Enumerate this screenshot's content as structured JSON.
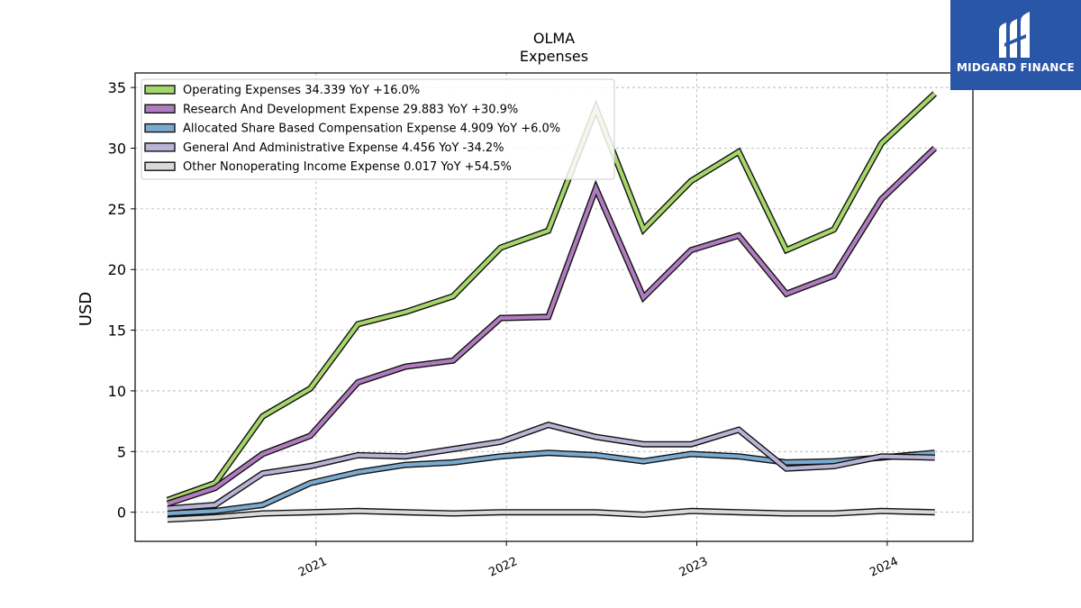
{
  "chart_data": {
    "type": "line",
    "title": "OLMA",
    "subtitle": "Expenses",
    "ylabel": "USD",
    "xlabel": "",
    "ylim": [
      -2.4,
      36.2
    ],
    "xlim": [
      2020.05,
      2024.45
    ],
    "yticks": [
      0,
      5,
      10,
      15,
      20,
      25,
      30,
      35
    ],
    "xticks": [
      {
        "value": 2021.0,
        "label": "2021"
      },
      {
        "value": 2022.0,
        "label": "2022"
      },
      {
        "value": 2023.0,
        "label": "2023"
      },
      {
        "value": 2024.0,
        "label": "2024"
      }
    ],
    "grid": true,
    "legend_position": "top-left",
    "x": [
      2020.22,
      2020.47,
      2020.72,
      2020.97,
      2021.22,
      2021.47,
      2021.72,
      2021.97,
      2022.22,
      2022.47,
      2022.72,
      2022.97,
      2023.22,
      2023.47,
      2023.72,
      2023.97,
      2024.25
    ],
    "series": [
      {
        "name": "Operating Expenses",
        "legend": "Operating Expenses  34.339 YoY +16.0%",
        "color": "#a6d66a",
        "values": [
          1.0,
          2.4,
          7.9,
          10.2,
          15.5,
          16.5,
          17.8,
          21.8,
          23.2,
          33.3,
          23.3,
          27.3,
          29.7,
          21.6,
          23.3,
          30.4,
          34.5
        ]
      },
      {
        "name": "Research And Development Expense",
        "legend": "Research And Development Expense  29.883 YoY +30.9%",
        "color": "#b07cc0",
        "values": [
          0.7,
          2.0,
          4.8,
          6.3,
          10.7,
          12.0,
          12.5,
          16.0,
          16.1,
          26.7,
          17.7,
          21.6,
          22.8,
          18.0,
          19.5,
          25.8,
          30.0
        ]
      },
      {
        "name": "Allocated Share Based Compensation Expense",
        "legend": "Allocated Share Based Compensation Expense  4.909 YoY +6.0%",
        "color": "#7aaad0",
        "values": [
          -0.1,
          0.1,
          0.6,
          2.4,
          3.3,
          3.9,
          4.1,
          4.6,
          4.9,
          4.7,
          4.2,
          4.8,
          4.6,
          4.1,
          4.2,
          4.5,
          4.9
        ]
      },
      {
        "name": "General And Administrative Expense",
        "legend": "General And Administrative Expense  4.456 YoY -34.2%",
        "color": "#b8b4d6",
        "values": [
          0.3,
          0.6,
          3.2,
          3.8,
          4.7,
          4.6,
          5.2,
          5.8,
          7.2,
          6.2,
          5.6,
          5.6,
          6.8,
          3.6,
          3.8,
          4.6,
          4.5
        ]
      },
      {
        "name": "Other Nonoperating Income Expense",
        "legend": "Other Nonoperating Income Expense  0.017 YoY +54.5%",
        "color": "#d9d9d9",
        "values": [
          -0.6,
          -0.4,
          -0.1,
          0.0,
          0.1,
          0.0,
          -0.1,
          0.0,
          0.0,
          0.0,
          -0.2,
          0.1,
          0.0,
          -0.1,
          -0.1,
          0.1,
          0.0
        ]
      }
    ]
  },
  "logo": {
    "text": "MIDGARD FINANCE",
    "color": "#2a56a8"
  }
}
